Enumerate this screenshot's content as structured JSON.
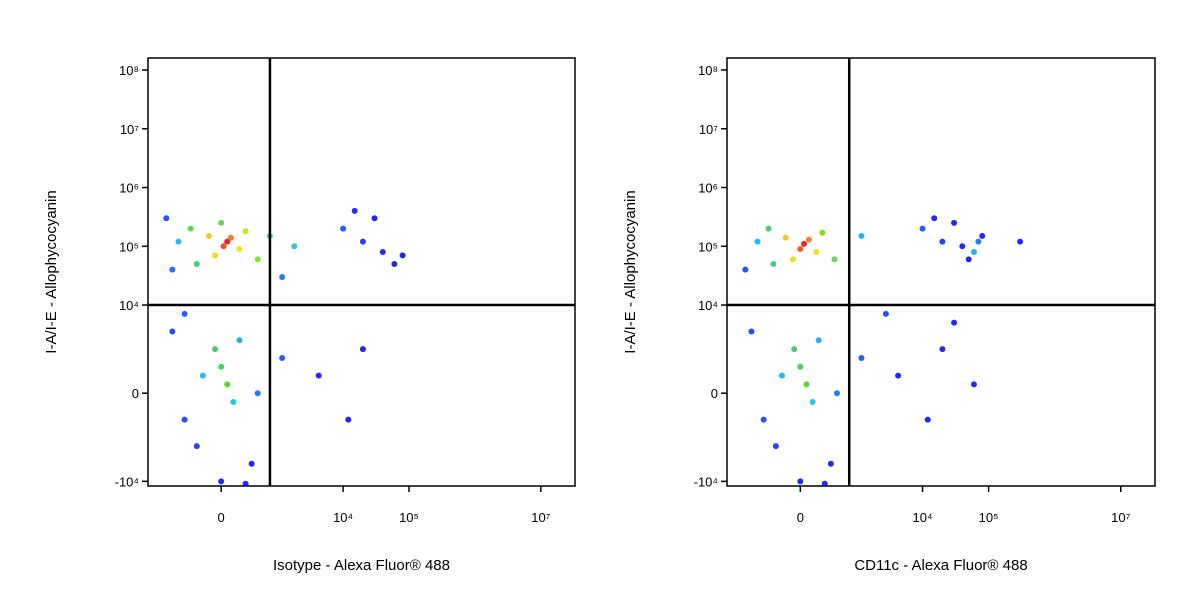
{
  "chart_data": [
    {
      "type": "scatter",
      "xlabel": "Isotype - Alexa Fluor® 488",
      "ylabel": "I-A/I-E - Allophycocyanin",
      "xlim": [
        -6000,
        33000000
      ],
      "ylim": [
        -12000,
        160000000
      ],
      "xticks": [
        0,
        {
          "value": 10000,
          "label": "10⁴"
        },
        {
          "value": 100000,
          "label": "10⁵"
        },
        {
          "value": 10000000,
          "label": "10⁷"
        }
      ],
      "yticks": [
        {
          "value": -10000,
          "label": "-10⁴"
        },
        0,
        {
          "value": 10000,
          "label": "10⁴"
        },
        {
          "value": 100000,
          "label": "10⁵"
        },
        {
          "value": 1000000,
          "label": "10⁶"
        },
        {
          "value": 10000000,
          "label": "10⁷"
        },
        {
          "value": 100000000,
          "label": "10⁸"
        }
      ],
      "quadrant_gate": [
        4000,
        10000
      ],
      "x": [
        500,
        200,
        800,
        -1000,
        1500,
        -500,
        2000,
        -2500,
        3000,
        -2000,
        4000,
        0,
        6000,
        -3500,
        10000,
        20000,
        40000,
        60000,
        -4500,
        15000,
        5000,
        -4000,
        30000,
        80000,
        0,
        500,
        -500,
        1000,
        -1500,
        1500,
        -3000,
        3000,
        -2000,
        2500,
        0,
        5000,
        8000,
        -4000,
        12000,
        20000,
        2000,
        -3000
      ],
      "y": [
        120000,
        100000,
        140000,
        150000,
        90000,
        70000,
        180000,
        200000,
        60000,
        50000,
        150000,
        250000,
        100000,
        120000,
        200000,
        120000,
        80000,
        50000,
        300000,
        400000,
        30000,
        40000,
        300000,
        70000,
        3000,
        1000,
        5000,
        -1000,
        2000,
        6000,
        -3000,
        0,
        -6000,
        -8000,
        -10000,
        4000,
        2000,
        7000,
        -3000,
        5000,
        -11000,
        9000
      ],
      "colors": [
        "#e00000",
        "#f03000",
        "#f06000",
        "#f0c000",
        "#e8e000",
        "#f0d000",
        "#c0e000",
        "#40d040",
        "#60e000",
        "#30c060",
        "#30c0a0",
        "#50d040",
        "#00c0e0",
        "#00b0f0",
        "#0040ff",
        "#0020f0",
        "#0000ff",
        "#0000e0",
        "#0030ff",
        "#0000ff",
        "#0060ff",
        "#0050ff",
        "#0000ee",
        "#0000dd",
        "#20d040",
        "#40d000",
        "#30c050",
        "#00c0d0",
        "#00b0e0",
        "#00a0f0",
        "#0030ff",
        "#0060ff",
        "#0020ff",
        "#0000ff",
        "#0000f0",
        "#0040ff",
        "#0000ff",
        "#0030f0",
        "#0000ee",
        "#0000e0",
        "#0000ff",
        "#0040ff"
      ]
    },
    {
      "type": "scatter",
      "xlabel": "CD11c - Alexa Fluor® 488",
      "ylabel": "I-A/I-E - Allophycocyanin",
      "xlim": [
        -6000,
        33000000
      ],
      "ylim": [
        -12000,
        160000000
      ],
      "xticks": [
        0,
        {
          "value": 10000,
          "label": "10⁴"
        },
        {
          "value": 100000,
          "label": "10⁵"
        },
        {
          "value": 10000000,
          "label": "10⁷"
        }
      ],
      "yticks": [
        {
          "value": -10000,
          "label": "-10⁴"
        },
        0,
        {
          "value": 10000,
          "label": "10⁴"
        },
        {
          "value": 100000,
          "label": "10⁵"
        },
        {
          "value": 1000000,
          "label": "10⁶"
        },
        {
          "value": 10000000,
          "label": "10⁷"
        },
        {
          "value": 100000000,
          "label": "10⁸"
        }
      ],
      "quadrant_gate": [
        4000,
        10000
      ],
      "x": [
        300,
        0,
        700,
        -1200,
        1300,
        -600,
        1800,
        -2600,
        2800,
        -2200,
        -3500,
        5000,
        10000,
        20000,
        40000,
        60000,
        70000,
        80000,
        50000,
        15000,
        -4500,
        30000,
        300000,
        0,
        500,
        -500,
        1000,
        -1500,
        1500,
        -3000,
        3000,
        -2000,
        2500,
        0,
        5000,
        8000,
        -4000,
        12000,
        20000,
        30000,
        7000,
        2000,
        60000
      ],
      "y": [
        110000,
        90000,
        130000,
        140000,
        80000,
        60000,
        170000,
        200000,
        60000,
        50000,
        120000,
        150000,
        200000,
        120000,
        100000,
        80000,
        120000,
        150000,
        60000,
        300000,
        40000,
        250000,
        120000,
        3000,
        1000,
        5000,
        -1000,
        2000,
        6000,
        -3000,
        0,
        -6000,
        -8000,
        -10000,
        4000,
        2000,
        7000,
        -3000,
        5000,
        8000,
        9000,
        -11000,
        1000
      ],
      "colors": [
        "#e00000",
        "#f04000",
        "#f07000",
        "#f0c000",
        "#e0e000",
        "#d0e000",
        "#80d000",
        "#30c060",
        "#50d040",
        "#30c080",
        "#00b0f0",
        "#00a0f0",
        "#0040ff",
        "#0020f0",
        "#0000ff",
        "#00a0f0",
        "#0060ff",
        "#0000ff",
        "#0000e0",
        "#0000ff",
        "#0030ff",
        "#0000ee",
        "#0000ff",
        "#20d040",
        "#40d000",
        "#30c050",
        "#00c0d0",
        "#00b0e0",
        "#00a0f0",
        "#0030ff",
        "#0060ff",
        "#0020ff",
        "#0000ff",
        "#0000f0",
        "#0040ff",
        "#0000ff",
        "#0030f0",
        "#0000ee",
        "#0000e0",
        "#0000ff",
        "#0030ff",
        "#0000ff",
        "#0000ee"
      ]
    }
  ]
}
